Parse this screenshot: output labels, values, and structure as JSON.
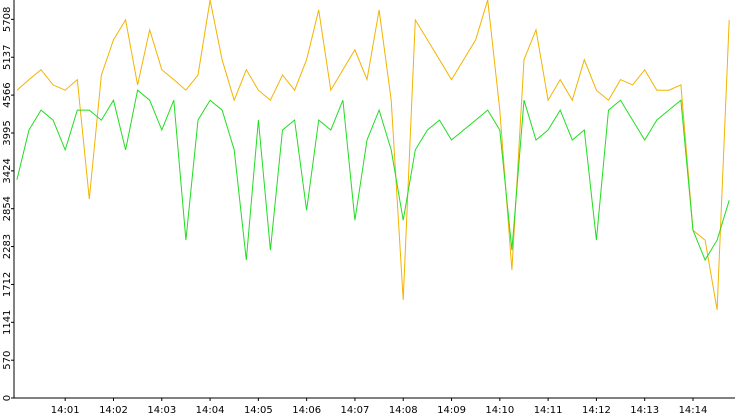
{
  "chart_data": {
    "type": "line",
    "x": [
      0,
      0.25,
      0.5,
      0.75,
      1,
      1.25,
      1.5,
      1.75,
      2,
      2.25,
      2.5,
      2.75,
      3,
      3.25,
      3.5,
      3.75,
      4,
      4.25,
      4.5,
      4.75,
      5,
      5.25,
      5.5,
      5.75,
      6,
      6.25,
      6.5,
      6.75,
      7,
      7.25,
      7.5,
      7.75,
      8,
      8.25,
      8.5,
      8.75,
      9,
      9.25,
      9.5,
      9.75,
      10,
      10.25,
      10.5,
      10.75,
      11,
      11.25,
      11.5,
      11.75,
      12,
      12.25,
      12.5,
      12.75,
      13,
      13.25,
      13.5,
      13.75,
      14,
      14.25,
      14.5,
      14.75
    ],
    "series": [
      {
        "color": "#f2b400",
        "values": [
          4640,
          4800,
          4950,
          4720,
          4640,
          4800,
          3000,
          4870,
          5400,
          5700,
          4720,
          5550,
          4950,
          4800,
          4640,
          4870,
          6000,
          5100,
          4490,
          4950,
          4640,
          4490,
          4870,
          4640,
          5100,
          5850,
          4640,
          4950,
          5250,
          4800,
          5850,
          4490,
          1480,
          5700,
          5400,
          5100,
          4800,
          5100,
          5400,
          6000,
          4340,
          1930,
          5100,
          5550,
          4490,
          4800,
          4490,
          5100,
          4640,
          4490,
          4800,
          4720,
          4950,
          4640,
          4640,
          4720,
          2530,
          2380,
          1330,
          5700
        ]
      },
      {
        "color": "#22dd22",
        "values": [
          3290,
          4040,
          4340,
          4190,
          3740,
          4340,
          4340,
          4190,
          4490,
          3740,
          4640,
          4490,
          4040,
          4490,
          2380,
          4190,
          4490,
          4340,
          3740,
          2080,
          4190,
          2230,
          4040,
          4190,
          2830,
          4190,
          4040,
          4490,
          2680,
          3890,
          4340,
          3740,
          2680,
          3740,
          4040,
          4190,
          3890,
          4040,
          4190,
          4340,
          4040,
          2230,
          4490,
          3890,
          4040,
          4340,
          3890,
          4040,
          2380,
          4340,
          4490,
          4190,
          3890,
          4190,
          4340,
          4490,
          2530,
          2080,
          2380,
          2980
        ]
      }
    ],
    "xlim": [
      -0.06,
      14.87
    ],
    "xticks": [
      {
        "value": 1,
        "label": "14:01"
      },
      {
        "value": 2,
        "label": "14:02"
      },
      {
        "value": 3,
        "label": "14:03"
      },
      {
        "value": 4,
        "label": "14:04"
      },
      {
        "value": 5,
        "label": "14:05"
      },
      {
        "value": 6,
        "label": "14:06"
      },
      {
        "value": 7,
        "label": "14:07"
      },
      {
        "value": 8,
        "label": "14:08"
      },
      {
        "value": 9,
        "label": "14:09"
      },
      {
        "value": 10,
        "label": "14:10"
      },
      {
        "value": 11,
        "label": "14:11"
      },
      {
        "value": 12,
        "label": "14:12"
      },
      {
        "value": 13,
        "label": "14:13"
      },
      {
        "value": 14,
        "label": "14:14"
      }
    ],
    "ylim": [
      0,
      6000
    ],
    "yticks": [
      0,
      570,
      1141,
      1712,
      2283,
      2854,
      3424,
      3995,
      4566,
      5137,
      5708
    ]
  }
}
